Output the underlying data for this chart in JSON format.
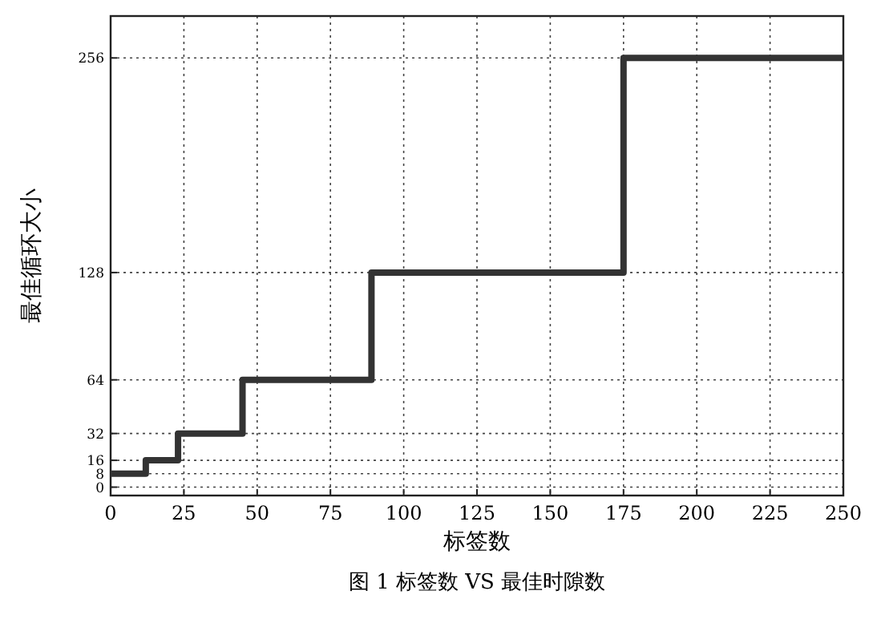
{
  "chart_data": {
    "type": "step",
    "title": "图 1 标签数 VS 最佳时隙数",
    "xlabel": "标签数",
    "ylabel": "最佳循环大小",
    "x": [
      0,
      12,
      23,
      45,
      89,
      175,
      250
    ],
    "series": [
      {
        "color": "#333333",
        "values": [
          8,
          16,
          32,
          64,
          128,
          256,
          256
        ]
      }
    ],
    "xlim": [
      0,
      250
    ],
    "xticks": [
      0,
      25,
      50,
      75,
      100,
      125,
      150,
      175,
      200,
      225,
      250
    ],
    "ylim": [
      -5,
      281
    ],
    "yticks": [
      0,
      8,
      16,
      32,
      64,
      128,
      256
    ],
    "grid": true,
    "line_style": "solid",
    "marker": "none"
  }
}
